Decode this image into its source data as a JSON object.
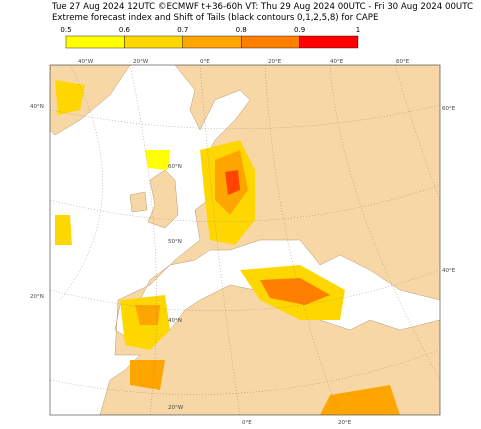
{
  "header": {
    "line1": "Tue 27 Aug 2024 12UTC ©ECMWF t+36-60h  VT: Thu 29 Aug 2024 00UTC - Fri 30 Aug 2024 00UTC",
    "line2": "Extreme forecast index and Shift of Tails (black contours 0,1,2,5,8) for CAPE"
  },
  "colorbar": {
    "ticks": [
      0.5,
      0.6,
      0.7,
      0.8,
      0.9,
      1
    ],
    "colors": [
      "#ffff00",
      "#ffd700",
      "#ffa500",
      "#ff7f00",
      "#ff0000"
    ]
  },
  "graticule": {
    "top": [
      "40°W",
      "20°W",
      "0°E",
      "20°E",
      "40°E",
      "60°E"
    ],
    "left": [
      "40°N",
      "20°N"
    ],
    "right": [
      "60°E",
      "40°E"
    ],
    "bottom": [
      "20°W",
      "0°E",
      "20°E"
    ],
    "inner": [
      "60°N",
      "50°N",
      "40°N"
    ]
  }
}
